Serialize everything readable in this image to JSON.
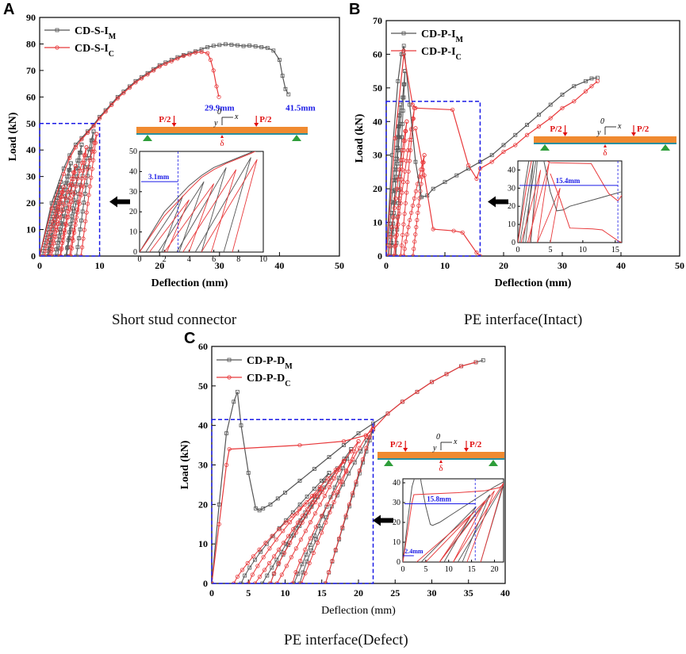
{
  "colors": {
    "measured": "#555555",
    "computed": "#e8393b",
    "box": "#1a1ae6",
    "beam": "#f08a30",
    "beam_base": "#2a8fa0",
    "support": "#2e9e3a",
    "arrow": "#e01010",
    "annot": "#1a1ae6"
  },
  "captions": {
    "a": "Short stud connector",
    "b": "PE interface(Intact)",
    "c": "PE interface(Defect)"
  },
  "chart_data": [
    {
      "id": "a",
      "panel_label": "A",
      "type": "line",
      "xlabel": "Deflection (mm)",
      "ylabel": "Load (kN)",
      "xlim": [
        0,
        50
      ],
      "ylim": [
        0,
        90
      ],
      "xticks": [
        0,
        10,
        20,
        30,
        40,
        50
      ],
      "yticks": [
        0,
        10,
        20,
        30,
        40,
        50,
        60,
        70,
        80,
        90
      ],
      "series": [
        {
          "base": "CD-S-I",
          "sub": "M",
          "style": "measured",
          "x": [
            0,
            2,
            4,
            5,
            6,
            7,
            8,
            9,
            10,
            11,
            12,
            13,
            14,
            15,
            16,
            17,
            18,
            19,
            20,
            21,
            22,
            23,
            24,
            25,
            26,
            27,
            28,
            29,
            30,
            31,
            32,
            33,
            34,
            35,
            36,
            37,
            38,
            39,
            40,
            40.5,
            41,
            41.5
          ],
          "y": [
            0,
            20,
            33,
            38,
            42,
            44.5,
            47,
            49.5,
            52.5,
            55,
            57.5,
            60,
            62,
            64,
            66,
            67.5,
            69,
            70.5,
            72,
            73,
            74,
            75,
            75.8,
            76.5,
            77.2,
            78,
            78.8,
            79.3,
            79.6,
            79.9,
            79.7,
            79.5,
            79.2,
            79.4,
            79.1,
            78.8,
            78.5,
            77.5,
            74,
            68,
            63,
            61
          ]
        },
        {
          "base": "CD-S-I",
          "sub": "C",
          "style": "computed",
          "x": [
            0,
            2,
            4,
            5,
            6,
            7,
            8,
            9,
            10,
            11,
            12,
            13,
            14,
            15,
            16,
            17,
            18,
            19,
            20,
            21,
            22,
            23,
            24,
            25,
            26,
            27,
            28,
            28.5,
            29,
            29.5,
            29.9
          ],
          "y": [
            0,
            18,
            31,
            37,
            41,
            44,
            46.5,
            49,
            52,
            54.5,
            57,
            59.5,
            61.5,
            63.5,
            65.5,
            67,
            68.5,
            70,
            71.5,
            72.5,
            73.5,
            74.5,
            75.5,
            76,
            76.8,
            77,
            76.5,
            74,
            70,
            64,
            60
          ]
        }
      ],
      "cycles": {
        "measured": [
          [
            0.5,
            1.8,
            3.5,
            28
          ],
          [
            1.5,
            3.2,
            5.2,
            35
          ],
          [
            3.0,
            5.0,
            7.0,
            42
          ],
          [
            4.5,
            6.8,
            9.0,
            47
          ]
        ],
        "computed": [
          [
            0.8,
            2.2,
            4.0,
            26
          ],
          [
            2.0,
            4.0,
            6.0,
            34
          ],
          [
            3.5,
            5.8,
            7.8,
            41
          ],
          [
            5.0,
            7.5,
            9.5,
            46
          ]
        ]
      },
      "annotations": [
        {
          "text": "29.9mm",
          "x": 30,
          "y": 59
        },
        {
          "text": "41.5mm",
          "x": 43.5,
          "y": 59
        }
      ],
      "zoom_box": {
        "x": [
          0,
          10
        ],
        "y": [
          0,
          50
        ]
      },
      "inset": {
        "xlim": [
          0,
          10
        ],
        "ylim": [
          0,
          50
        ],
        "xticks": [
          0,
          2,
          4,
          6,
          8,
          10
        ],
        "yticks": [
          0,
          10,
          20,
          30,
          40,
          50
        ],
        "dim_label": "3.1mm",
        "dim_value": 3.1
      },
      "diagram": {
        "load_left": "P/2",
        "load_right": "P/2",
        "origin": "0",
        "axis_x": "x",
        "axis_y": "y",
        "delta": "δ"
      }
    },
    {
      "id": "b",
      "panel_label": "B",
      "type": "line",
      "xlabel": "Deflection (mm)",
      "ylabel": "Load (kN)",
      "xlim": [
        0,
        50
      ],
      "ylim": [
        0,
        70
      ],
      "xticks": [
        0,
        10,
        20,
        30,
        40,
        50
      ],
      "yticks": [
        0,
        10,
        20,
        30,
        40,
        50,
        60,
        70
      ],
      "series": [
        {
          "base": "CD-P-I",
          "sub": "M",
          "style": "measured",
          "x": [
            0,
            1,
            2,
            2.6,
            3.0,
            4,
            5,
            6,
            7,
            8,
            10,
            12,
            14,
            16,
            18,
            20,
            22,
            24,
            26,
            28,
            30,
            32,
            34,
            35,
            36
          ],
          "y": [
            0,
            30,
            52,
            60,
            62.5,
            45,
            28,
            17.5,
            18,
            20,
            22,
            24,
            26,
            28,
            30,
            33,
            36,
            39,
            42,
            45,
            48,
            50.5,
            52,
            52.8,
            53
          ]
        },
        {
          "base": "CD-P-I",
          "sub": "C",
          "style": "computed",
          "x": [
            0,
            1.5,
            3.0,
            4.5,
            5.0,
            11.3,
            14,
            15.4,
            16,
            18,
            20,
            22,
            24,
            26,
            28,
            30,
            32,
            34,
            35,
            36
          ],
          "y": [
            0,
            35,
            60,
            45,
            44,
            43.5,
            27,
            23,
            26,
            28,
            31,
            33,
            36,
            38.5,
            41,
            44,
            46,
            49,
            50.5,
            52
          ]
        },
        {
          "base": "",
          "sub": "",
          "style": "computed",
          "x": [
            5.0,
            6.5,
            8,
            11.5,
            13,
            15.4,
            16
          ],
          "y": [
            38,
            24,
            8,
            7.5,
            7,
            1,
            0
          ]
        }
      ],
      "cycles": {
        "measured": [
          [
            0.3,
            1.2,
            2.4,
            45
          ],
          [
            0.8,
            2.0,
            3.2,
            55
          ]
        ],
        "computed": [
          [
            0.5,
            1.8,
            3.5,
            40
          ],
          [
            1.5,
            3.0,
            4.8,
            44
          ],
          [
            3.0,
            5.0,
            6.5,
            30
          ]
        ]
      },
      "annotations": [],
      "zoom_box": {
        "x": [
          0,
          16
        ],
        "y": [
          0,
          46
        ]
      },
      "inset": {
        "xlim": [
          0,
          16
        ],
        "ylim": [
          0,
          45
        ],
        "xticks": [
          0,
          5,
          10,
          15
        ],
        "yticks": [
          0,
          10,
          20,
          30,
          40
        ],
        "dim_label": "15.4mm",
        "dim_value": 15.4
      },
      "diagram": {
        "load_left": "P/2",
        "load_right": "P/2",
        "origin": "0",
        "axis_x": "x",
        "axis_y": "y",
        "delta": "δ"
      }
    },
    {
      "id": "c",
      "panel_label": "C",
      "type": "line",
      "xlabel": "Deflection (mm)",
      "ylabel": "Load (kN)",
      "xlim": [
        0,
        40
      ],
      "ylim": [
        0,
        60
      ],
      "xticks": [
        0,
        5,
        10,
        15,
        20,
        25,
        30,
        35,
        40
      ],
      "yticks": [
        0,
        10,
        20,
        30,
        40,
        50,
        60
      ],
      "series": [
        {
          "base": "CD-P-D",
          "sub": "M",
          "style": "measured",
          "x": [
            0,
            1,
            2,
            3,
            3.5,
            4,
            5,
            6,
            6.5,
            7,
            8,
            9,
            10,
            12,
            14,
            16,
            18,
            20,
            22,
            24,
            26,
            28,
            30,
            32,
            34,
            36,
            37
          ],
          "y": [
            0,
            20,
            38,
            46,
            48.5,
            40,
            28,
            19,
            18.5,
            19,
            20,
            21.5,
            23,
            26,
            29,
            32,
            35,
            38,
            40.5,
            43,
            46,
            48.5,
            51,
            53,
            55,
            56,
            56.5
          ]
        },
        {
          "base": "CD-P-D",
          "sub": "C",
          "style": "computed",
          "x": [
            0,
            1,
            2,
            2.4,
            12,
            18,
            21,
            22,
            24,
            26,
            28,
            30,
            32,
            34,
            36
          ],
          "y": [
            0,
            15,
            30,
            34,
            35,
            36,
            37.5,
            39,
            43,
            46,
            48.5,
            51,
            53,
            55,
            56
          ]
        }
      ],
      "cycles": {
        "measured": [
          [
            4,
            9,
            16,
            28
          ],
          [
            8,
            13,
            19,
            34
          ],
          [
            12,
            17,
            22,
            39
          ]
        ],
        "computed": [
          [
            3,
            8,
            15,
            24
          ],
          [
            5,
            11,
            18,
            31
          ],
          [
            8,
            14,
            20,
            36
          ],
          [
            11,
            17,
            22,
            40
          ]
        ]
      },
      "annotations": [],
      "zoom_box": {
        "x": [
          0,
          22
        ],
        "y": [
          0,
          41.5
        ]
      },
      "inset": {
        "xlim": [
          0,
          22
        ],
        "ylim": [
          0,
          42
        ],
        "xticks": [
          0,
          5,
          10,
          15,
          20
        ],
        "yticks": [
          0,
          10,
          20,
          30,
          40
        ],
        "dim_label": "15.8mm",
        "dim_value": 15.8,
        "dim_label2": "2.4mm",
        "dim_value2": 2.4
      },
      "diagram": {
        "load_left": "P/2",
        "load_right": "P/2",
        "origin": "0",
        "axis_x": "x",
        "axis_y": "y",
        "delta": "δ"
      }
    }
  ]
}
